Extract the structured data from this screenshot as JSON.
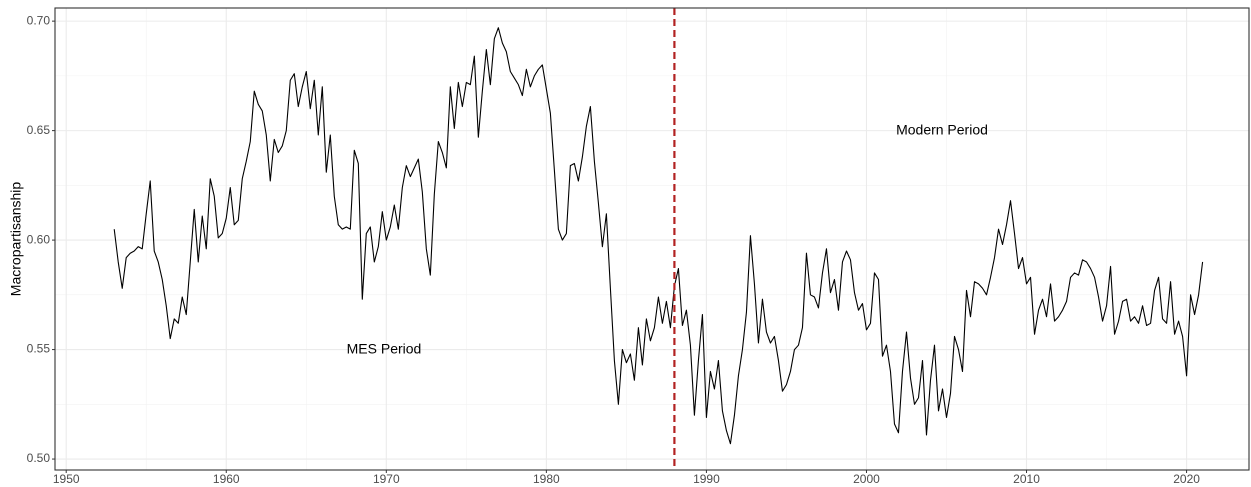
{
  "chart_data": {
    "type": "line",
    "y_label": "Macropartisanship",
    "annotations": [
      "MES Period",
      "Modern Period"
    ],
    "vline": 1988,
    "vline_color": "#b22222",
    "color": "#000000",
    "grid": true,
    "minor_grid": true,
    "xlim": [
      1949.3,
      2023.9
    ],
    "ylim": [
      0.495,
      0.706
    ],
    "xticks": [
      1950,
      1960,
      1970,
      1980,
      1990,
      2000,
      2010,
      2020
    ],
    "yticks": [
      {
        "value": 0.5,
        "label": "0.50"
      },
      0.55,
      {
        "value": 0.6,
        "label": "0.60"
      },
      0.65,
      {
        "value": 0.7,
        "label": "0.70"
      }
    ],
    "x": [
      1953,
      1953.25,
      1953.5,
      1953.75,
      1954,
      1954.25,
      1954.5,
      1954.75,
      1955,
      1955.25,
      1955.5,
      1955.75,
      1956,
      1956.25,
      1956.5,
      1956.75,
      1957,
      1957.25,
      1957.5,
      1957.75,
      1958,
      1958.25,
      1958.5,
      1958.75,
      1959,
      1959.25,
      1959.5,
      1959.75,
      1960,
      1960.25,
      1960.5,
      1960.75,
      1961,
      1961.25,
      1961.5,
      1961.75,
      1962,
      1962.25,
      1962.5,
      1962.75,
      1963,
      1963.25,
      1963.5,
      1963.75,
      1964,
      1964.25,
      1964.5,
      1964.75,
      1965,
      1965.25,
      1965.5,
      1965.75,
      1966,
      1966.25,
      1966.5,
      1966.75,
      1967,
      1967.25,
      1967.5,
      1967.75,
      1968,
      1968.25,
      1968.5,
      1968.75,
      1969,
      1969.25,
      1969.5,
      1969.75,
      1970,
      1970.25,
      1970.5,
      1970.75,
      1971,
      1971.25,
      1971.5,
      1971.75,
      1972,
      1972.25,
      1972.5,
      1972.75,
      1973,
      1973.25,
      1973.5,
      1973.75,
      1974,
      1974.25,
      1974.5,
      1974.75,
      1975,
      1975.25,
      1975.5,
      1975.75,
      1976,
      1976.25,
      1976.5,
      1976.75,
      1977,
      1977.25,
      1977.5,
      1977.75,
      1978,
      1978.25,
      1978.5,
      1978.75,
      1979,
      1979.25,
      1979.5,
      1979.75,
      1980,
      1980.25,
      1980.5,
      1980.75,
      1981,
      1981.25,
      1981.5,
      1981.75,
      1982,
      1982.25,
      1982.5,
      1982.75,
      1983,
      1983.25,
      1983.5,
      1983.75,
      1984,
      1984.25,
      1984.5,
      1984.75,
      1985,
      1985.25,
      1985.5,
      1985.75,
      1986,
      1986.25,
      1986.5,
      1986.75,
      1987,
      1987.25,
      1987.5,
      1987.75,
      1988,
      1988.25,
      1988.5,
      1988.75,
      1989,
      1989.25,
      1989.5,
      1989.75,
      1990,
      1990.25,
      1990.5,
      1990.75,
      1991,
      1991.25,
      1991.5,
      1991.75,
      1992,
      1992.25,
      1992.5,
      1992.75,
      1993,
      1993.25,
      1993.5,
      1993.75,
      1994,
      1994.25,
      1994.5,
      1994.75,
      1995,
      1995.25,
      1995.5,
      1995.75,
      1996,
      1996.25,
      1996.5,
      1996.75,
      1997,
      1997.25,
      1997.5,
      1997.75,
      1998,
      1998.25,
      1998.5,
      1998.75,
      1999,
      1999.25,
      1999.5,
      1999.75,
      2000,
      2000.25,
      2000.5,
      2000.75,
      2001,
      2001.25,
      2001.5,
      2001.75,
      2002,
      2002.25,
      2002.5,
      2002.75,
      2003,
      2003.25,
      2003.5,
      2003.75,
      2004,
      2004.25,
      2004.5,
      2004.75,
      2005,
      2005.25,
      2005.5,
      2005.75,
      2006,
      2006.25,
      2006.5,
      2006.75,
      2007,
      2007.25,
      2007.5,
      2007.75,
      2008,
      2008.25,
      2008.5,
      2008.75,
      2009,
      2009.25,
      2009.5,
      2009.75,
      2010,
      2010.25,
      2010.5,
      2010.75,
      2011,
      2011.25,
      2011.5,
      2011.75,
      2012,
      2012.25,
      2012.5,
      2012.75,
      2013,
      2013.25,
      2013.5,
      2013.75,
      2014,
      2014.25,
      2014.5,
      2014.75,
      2015,
      2015.25,
      2015.5,
      2015.75,
      2016,
      2016.25,
      2016.5,
      2016.75,
      2017,
      2017.25,
      2017.5,
      2017.75,
      2018,
      2018.25,
      2018.5,
      2018.75,
      2019,
      2019.25,
      2019.5,
      2019.75,
      2020,
      2020.25,
      2020.5,
      2020.75,
      2021
    ],
    "values": [
      0.605,
      0.59,
      0.578,
      0.592,
      0.594,
      0.595,
      0.597,
      0.596,
      0.612,
      0.627,
      0.595,
      0.59,
      0.582,
      0.57,
      0.555,
      0.564,
      0.562,
      0.574,
      0.566,
      0.59,
      0.614,
      0.59,
      0.611,
      0.596,
      0.628,
      0.62,
      0.601,
      0.603,
      0.61,
      0.624,
      0.607,
      0.609,
      0.628,
      0.636,
      0.645,
      0.668,
      0.662,
      0.659,
      0.648,
      0.627,
      0.646,
      0.64,
      0.643,
      0.65,
      0.673,
      0.676,
      0.661,
      0.67,
      0.677,
      0.66,
      0.673,
      0.648,
      0.67,
      0.631,
      0.648,
      0.62,
      0.607,
      0.605,
      0.606,
      0.605,
      0.641,
      0.635,
      0.573,
      0.603,
      0.606,
      0.59,
      0.597,
      0.613,
      0.6,
      0.606,
      0.616,
      0.605,
      0.624,
      0.634,
      0.629,
      0.633,
      0.637,
      0.622,
      0.596,
      0.584,
      0.621,
      0.645,
      0.64,
      0.633,
      0.67,
      0.651,
      0.672,
      0.661,
      0.672,
      0.671,
      0.684,
      0.647,
      0.668,
      0.687,
      0.671,
      0.692,
      0.697,
      0.69,
      0.686,
      0.677,
      0.674,
      0.671,
      0.666,
      0.678,
      0.67,
      0.675,
      0.678,
      0.68,
      0.669,
      0.658,
      0.632,
      0.605,
      0.6,
      0.603,
      0.634,
      0.635,
      0.627,
      0.638,
      0.652,
      0.661,
      0.636,
      0.617,
      0.597,
      0.612,
      0.578,
      0.545,
      0.525,
      0.55,
      0.544,
      0.548,
      0.536,
      0.56,
      0.543,
      0.564,
      0.554,
      0.56,
      0.574,
      0.562,
      0.572,
      0.56,
      0.579,
      0.587,
      0.561,
      0.568,
      0.552,
      0.52,
      0.545,
      0.566,
      0.519,
      0.54,
      0.532,
      0.545,
      0.522,
      0.513,
      0.507,
      0.52,
      0.538,
      0.55,
      0.567,
      0.602,
      0.58,
      0.553,
      0.573,
      0.558,
      0.553,
      0.556,
      0.545,
      0.531,
      0.534,
      0.54,
      0.55,
      0.552,
      0.56,
      0.594,
      0.575,
      0.574,
      0.569,
      0.585,
      0.596,
      0.576,
      0.582,
      0.568,
      0.59,
      0.595,
      0.591,
      0.576,
      0.568,
      0.571,
      0.559,
      0.562,
      0.585,
      0.582,
      0.547,
      0.552,
      0.54,
      0.516,
      0.512,
      0.54,
      0.558,
      0.537,
      0.525,
      0.528,
      0.545,
      0.511,
      0.536,
      0.552,
      0.522,
      0.532,
      0.519,
      0.53,
      0.556,
      0.55,
      0.54,
      0.577,
      0.565,
      0.581,
      0.58,
      0.578,
      0.575,
      0.583,
      0.592,
      0.605,
      0.598,
      0.607,
      0.618,
      0.603,
      0.587,
      0.592,
      0.58,
      0.583,
      0.557,
      0.568,
      0.573,
      0.565,
      0.58,
      0.563,
      0.565,
      0.568,
      0.572,
      0.583,
      0.585,
      0.584,
      0.591,
      0.59,
      0.587,
      0.583,
      0.574,
      0.563,
      0.57,
      0.588,
      0.557,
      0.563,
      0.572,
      0.573,
      0.563,
      0.565,
      0.562,
      0.57,
      0.561,
      0.562,
      0.577,
      0.583,
      0.564,
      0.562,
      0.581,
      0.557,
      0.563,
      0.556,
      0.538,
      0.575,
      0.566,
      0.575,
      0.59
    ]
  }
}
